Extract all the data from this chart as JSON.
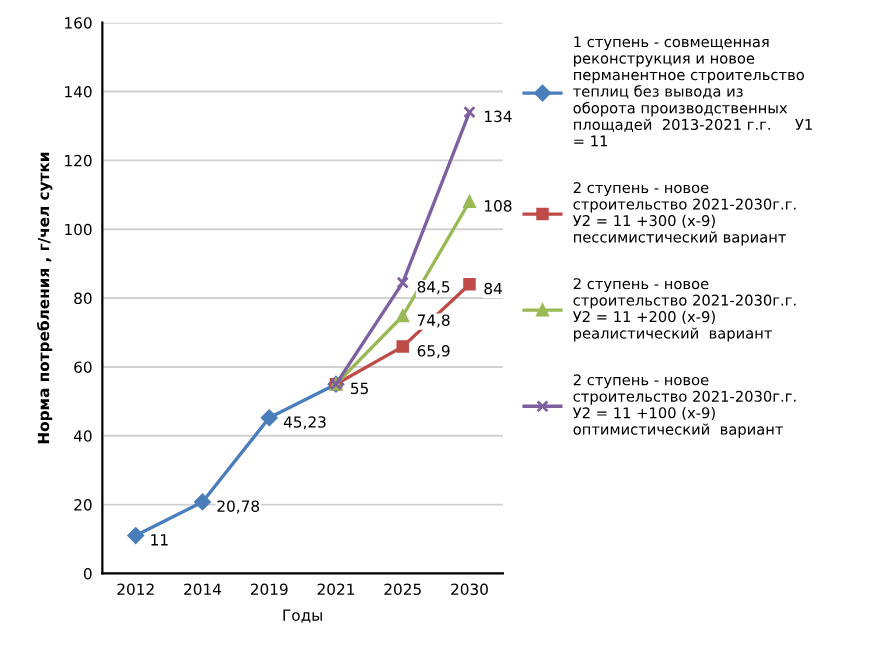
{
  "chart_data": {
    "type": "line",
    "categories": [
      "2012",
      "2014",
      "2019",
      "2021",
      "2025",
      "2030"
    ],
    "xlabel": "Годы",
    "ylabel": "Норма потребления , г/чел сутки",
    "ylim": [
      0,
      160
    ],
    "yticks": [
      0,
      20,
      40,
      60,
      80,
      100,
      120,
      140,
      160
    ],
    "grid": "y",
    "legend": "right",
    "series": [
      {
        "name": "1 ступень - совмещенная\nреконструкция и новое\nперманентное строительство\nтеплиц без вывода из\nоборота производственных\nплощадей  2013-2021 г.г.     У1\n= 11",
        "color": "#4a7ebb",
        "marker": "diamond",
        "values": [
          11,
          20.78,
          45.23,
          55,
          null,
          null
        ],
        "value_labels": [
          "11",
          "20,78",
          "45,23",
          "55",
          null,
          null
        ]
      },
      {
        "name": "2 ступень - новое\nстроительство 2021-2030г.г.\nУ2 = 11 +300 (х-9)\nпессимистический вариант",
        "color": "#be4b48",
        "marker": "square",
        "values": [
          null,
          null,
          null,
          55,
          65.9,
          84
        ],
        "value_labels": [
          null,
          null,
          null,
          null,
          "65,9",
          "84"
        ]
      },
      {
        "name": "2 ступень - новое\nстроительство 2021-2030г.г.\nУ2 = 11 +200 (х-9)\nреалистический  вариант",
        "color": "#98b954",
        "marker": "triangle",
        "values": [
          null,
          null,
          null,
          55,
          74.8,
          108
        ],
        "value_labels": [
          null,
          null,
          null,
          null,
          "74,8",
          "108"
        ]
      },
      {
        "name": "2 ступень - новое\nстроительство 2021-2030г.г.\nУ2 = 11 +100 (х-9)\nоптимистический  вариант",
        "color": "#7d60a0",
        "marker": "cross",
        "values": [
          null,
          null,
          null,
          55,
          84.5,
          134
        ],
        "value_labels": [
          null,
          null,
          null,
          null,
          "84,5",
          "134"
        ]
      }
    ]
  }
}
